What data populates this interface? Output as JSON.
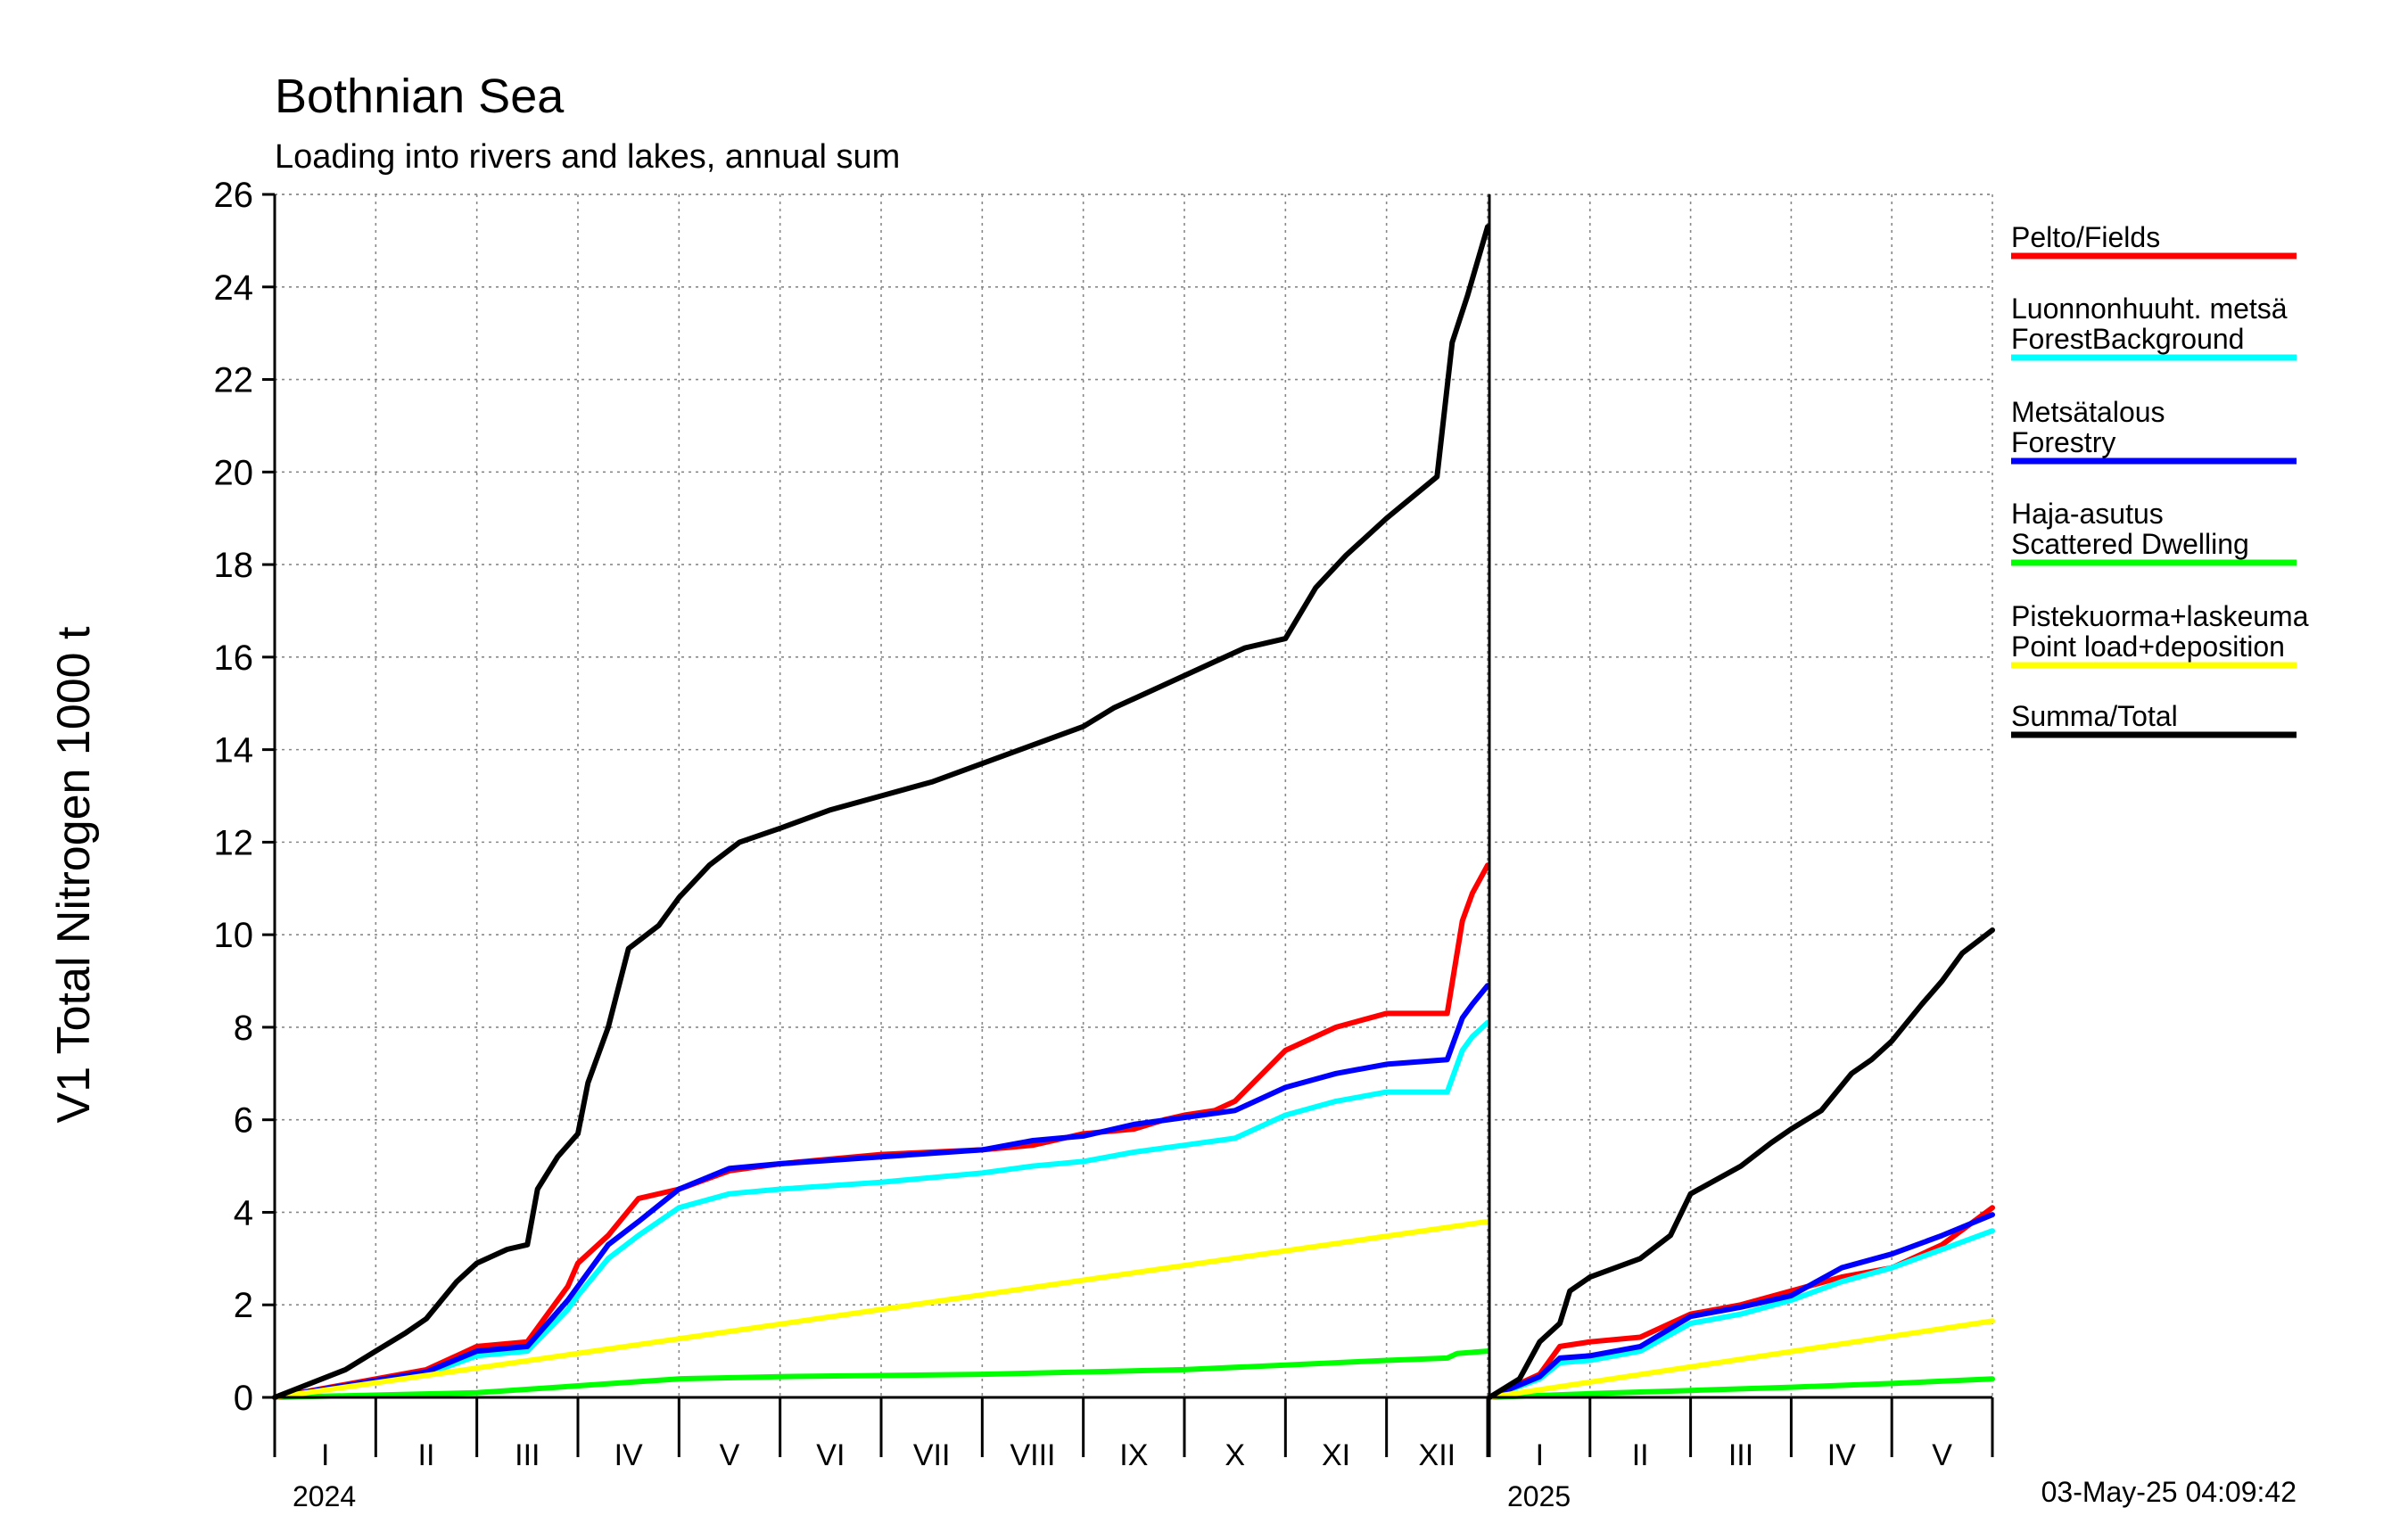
{
  "chart_data": {
    "type": "line",
    "title": "Bothnian Sea",
    "subtitle": "Loading into rivers and lakes, annual sum",
    "ylabel": "V1 Total Nitrogen 1000 t",
    "ylim": [
      0,
      26
    ],
    "yticks": [
      "0",
      "2",
      "4",
      "6",
      "8",
      "10",
      "12",
      "14",
      "16",
      "18",
      "20",
      "22",
      "24",
      "26"
    ],
    "grid": true,
    "legend_position": "right",
    "timestamp": "03-May-25 04:09:42",
    "panels": [
      {
        "year": "2024",
        "months": [
          "I",
          "II",
          "III",
          "IV",
          "V",
          "VI",
          "VII",
          "VIII",
          "IX",
          "X",
          "XI",
          "XII"
        ],
        "x_unit": "month",
        "series": [
          {
            "name": "Pelto/Fields",
            "color": "#ff0000",
            "x": [
              0,
              1.5,
              1.8,
              2.0,
              2.5,
              2.9,
              3.0,
              3.3,
              3.6,
              4.0,
              4.5,
              5.0,
              6.0,
              7.0,
              7.5,
              8.0,
              8.5,
              8.8,
              9.0,
              9.3,
              9.5,
              10.0,
              10.5,
              11.0,
              11.6,
              11.75,
              11.85,
              12.0
            ],
            "y": [
              0,
              0.6,
              0.9,
              1.1,
              1.2,
              2.4,
              2.9,
              3.5,
              4.3,
              4.5,
              4.9,
              5.05,
              5.25,
              5.35,
              5.45,
              5.7,
              5.8,
              6.0,
              6.1,
              6.2,
              6.4,
              7.5,
              8.0,
              8.3,
              8.3,
              10.3,
              10.9,
              11.5
            ]
          },
          {
            "name": "Luonnonhuuht. metsä ForestBackground",
            "color": "#00ffff",
            "x": [
              0,
              1.5,
              2.0,
              2.5,
              2.9,
              3.0,
              3.3,
              3.6,
              4.0,
              4.5,
              5.0,
              6.0,
              7.0,
              7.5,
              8.0,
              8.5,
              9.0,
              9.5,
              10.0,
              10.5,
              11.0,
              11.6,
              11.75,
              11.85,
              12.0
            ],
            "y": [
              0,
              0.5,
              0.9,
              1.0,
              1.9,
              2.2,
              3.0,
              3.5,
              4.1,
              4.4,
              4.5,
              4.65,
              4.85,
              5.0,
              5.1,
              5.3,
              5.45,
              5.6,
              6.1,
              6.4,
              6.6,
              6.6,
              7.5,
              7.8,
              8.1
            ]
          },
          {
            "name": "Metsätalous Forestry",
            "color": "#0000ff",
            "x": [
              0,
              1.5,
              2.0,
              2.5,
              2.9,
              3.0,
              3.3,
              3.6,
              4.0,
              4.5,
              5.0,
              6.0,
              7.0,
              7.5,
              8.0,
              8.5,
              9.0,
              9.5,
              10.0,
              10.5,
              11.0,
              11.6,
              11.75,
              11.85,
              12.0
            ],
            "y": [
              0,
              0.55,
              1.0,
              1.1,
              2.1,
              2.4,
              3.3,
              3.8,
              4.5,
              4.95,
              5.05,
              5.2,
              5.35,
              5.55,
              5.65,
              5.9,
              6.05,
              6.2,
              6.7,
              7.0,
              7.2,
              7.3,
              8.2,
              8.5,
              8.9
            ]
          },
          {
            "name": "Haja-asutus Scattered Dwelling",
            "color": "#00ff00",
            "x": [
              0,
              2.0,
              3.0,
              4.0,
              5.0,
              7.0,
              9.0,
              10.0,
              11.0,
              11.6,
              11.7,
              12.0
            ],
            "y": [
              0,
              0.1,
              0.25,
              0.4,
              0.45,
              0.5,
              0.6,
              0.7,
              0.8,
              0.85,
              0.95,
              1.0
            ]
          },
          {
            "name": "Pistekuorma+laskeuma Point load+deposition",
            "color": "#ffff00",
            "x": [
              0,
              12.0
            ],
            "y": [
              0,
              3.8
            ]
          },
          {
            "name": "Summa/Total",
            "color": "#000000",
            "x": [
              0,
              0.7,
              1.0,
              1.3,
              1.5,
              1.8,
              2.0,
              2.3,
              2.5,
              2.6,
              2.8,
              3.0,
              3.1,
              3.3,
              3.5,
              3.8,
              4.0,
              4.3,
              4.6,
              5.0,
              5.5,
              6.0,
              6.5,
              7.0,
              7.5,
              8.0,
              8.3,
              8.6,
              9.0,
              9.3,
              9.6,
              10.0,
              10.3,
              10.6,
              11.0,
              11.5,
              11.65,
              11.8,
              12.0
            ],
            "y": [
              0,
              0.6,
              1.0,
              1.4,
              1.7,
              2.5,
              2.9,
              3.2,
              3.3,
              4.5,
              5.2,
              5.7,
              6.8,
              8.0,
              9.7,
              10.2,
              10.8,
              11.5,
              12.0,
              12.3,
              12.7,
              13.0,
              13.3,
              13.7,
              14.1,
              14.5,
              14.9,
              15.2,
              15.6,
              15.9,
              16.2,
              16.4,
              17.5,
              18.2,
              19.0,
              19.9,
              22.8,
              23.8,
              25.3
            ]
          }
        ]
      },
      {
        "year": "2025",
        "months": [
          "I",
          "II",
          "III",
          "IV",
          "V"
        ],
        "x_unit": "month",
        "series": [
          {
            "name": "Pelto/Fields",
            "color": "#ff0000",
            "x": [
              0,
              0.5,
              0.7,
              1.0,
              1.5,
              2.0,
              2.5,
              3.0,
              3.5,
              4.0,
              4.5,
              5.0
            ],
            "y": [
              0,
              0.5,
              1.1,
              1.2,
              1.3,
              1.8,
              2.0,
              2.3,
              2.6,
              2.8,
              3.3,
              4.1
            ]
          },
          {
            "name": "Luonnonhuuht. metsä ForestBackground",
            "color": "#00ffff",
            "x": [
              0,
              0.5,
              0.7,
              1.0,
              1.5,
              2.0,
              2.5,
              3.0,
              3.5,
              4.0,
              4.5,
              5.0
            ],
            "y": [
              0,
              0.4,
              0.75,
              0.8,
              1.0,
              1.6,
              1.8,
              2.1,
              2.5,
              2.8,
              3.2,
              3.6
            ]
          },
          {
            "name": "Metsätalous Forestry",
            "color": "#0000ff",
            "x": [
              0,
              0.5,
              0.7,
              1.0,
              1.5,
              2.0,
              2.5,
              3.0,
              3.5,
              4.0,
              4.5,
              5.0
            ],
            "y": [
              0,
              0.45,
              0.85,
              0.9,
              1.1,
              1.75,
              1.95,
              2.2,
              2.8,
              3.1,
              3.5,
              3.95
            ]
          },
          {
            "name": "Haja-asutus Scattered Dwelling",
            "color": "#00ff00",
            "x": [
              0,
              1.0,
              2.0,
              3.0,
              4.0,
              5.0
            ],
            "y": [
              0,
              0.08,
              0.15,
              0.22,
              0.3,
              0.4
            ]
          },
          {
            "name": "Pistekuorma+laskeuma Point load+deposition",
            "color": "#ffff00",
            "x": [
              0,
              5.0
            ],
            "y": [
              0,
              1.65
            ]
          },
          {
            "name": "Summa/Total",
            "color": "#000000",
            "x": [
              0,
              0.3,
              0.5,
              0.7,
              0.8,
              1.0,
              1.5,
              1.8,
              2.0,
              2.5,
              2.8,
              3.0,
              3.3,
              3.6,
              3.8,
              4.0,
              4.3,
              4.5,
              4.7,
              5.0
            ],
            "y": [
              0,
              0.4,
              1.2,
              1.6,
              2.3,
              2.6,
              3.0,
              3.5,
              4.4,
              5.0,
              5.5,
              5.8,
              6.2,
              7.0,
              7.3,
              7.7,
              8.5,
              9.0,
              9.6,
              10.1
            ]
          }
        ]
      }
    ],
    "legend": [
      {
        "line1": "Pelto/Fields",
        "line2": "",
        "color": "#ff0000"
      },
      {
        "line1": "Luonnonhuuht. metsä",
        "line2": "ForestBackground",
        "color": "#00ffff"
      },
      {
        "line1": "Metsätalous",
        "line2": "Forestry",
        "color": "#0000ff"
      },
      {
        "line1": "Haja-asutus",
        "line2": "Scattered Dwelling",
        "color": "#00ff00"
      },
      {
        "line1": "Pistekuorma+laskeuma",
        "line2": "Point load+deposition",
        "color": "#ffff00"
      },
      {
        "line1": "Summa/Total",
        "line2": "",
        "color": "#000000"
      }
    ]
  }
}
